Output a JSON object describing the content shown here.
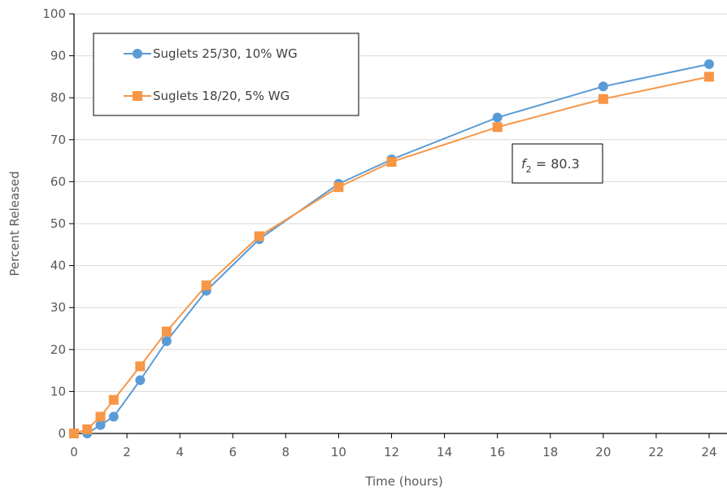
{
  "chart_data": {
    "type": "line",
    "title": "",
    "xlabel": "Time (hours)",
    "ylabel": "Percent Released",
    "xlim": [
      0,
      24
    ],
    "ylim": [
      0,
      100
    ],
    "xticks": [
      0,
      2,
      4,
      6,
      8,
      10,
      12,
      14,
      16,
      18,
      20,
      22,
      24
    ],
    "yticks": [
      0,
      10,
      20,
      30,
      40,
      50,
      60,
      70,
      80,
      90,
      100
    ],
    "grid": "horizontal",
    "legend_position": "top-left",
    "series": [
      {
        "name": "Suglets 25/30, 10% WG",
        "color": "#5b9bd5",
        "marker": "circle",
        "x": [
          0.5,
          1,
          1.5,
          2.5,
          3.5,
          5,
          7,
          10,
          12,
          16,
          20,
          24
        ],
        "y": [
          0,
          2,
          4,
          12.7,
          22,
          34,
          46.3,
          59.5,
          65.3,
          75.3,
          82.7,
          88
        ]
      },
      {
        "name": "Suglets 18/20, 5% WG",
        "color": "#f79646",
        "marker": "square",
        "x": [
          0,
          0.5,
          1,
          1.5,
          2.5,
          3.5,
          5,
          7,
          10,
          12,
          16,
          20,
          24
        ],
        "y": [
          0,
          1,
          4,
          8,
          16,
          24.3,
          35.3,
          47,
          58.7,
          64.7,
          73,
          79.7,
          85
        ]
      }
    ],
    "annotation": {
      "symbol": "f",
      "subscript": "2",
      "text": " = 80.3"
    }
  }
}
